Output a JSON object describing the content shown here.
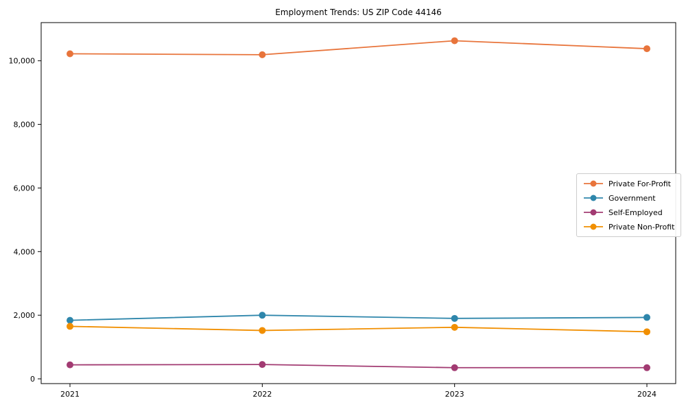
{
  "chart_data": {
    "type": "line",
    "title": "Employment Trends: US ZIP Code 44146",
    "x": [
      "2021",
      "2022",
      "2023",
      "2024"
    ],
    "series": [
      {
        "name": "Private For-Profit",
        "color": "#E8743B",
        "values": [
          10220,
          10190,
          10630,
          10380
        ]
      },
      {
        "name": "Government",
        "color": "#2E86AB",
        "values": [
          1840,
          2000,
          1900,
          1930
        ]
      },
      {
        "name": "Self-Employed",
        "color": "#A23B72",
        "values": [
          440,
          450,
          350,
          350
        ]
      },
      {
        "name": "Private Non-Profit",
        "color": "#F18F01",
        "values": [
          1650,
          1520,
          1620,
          1480
        ]
      }
    ],
    "xlabel": "",
    "ylabel": "",
    "ylim": [
      -150,
      11200
    ],
    "yticks": [
      0,
      2000,
      4000,
      6000,
      8000,
      10000
    ],
    "ytick_labels": [
      "0",
      "2,000",
      "4,000",
      "6,000",
      "8,000",
      "10,000"
    ],
    "grid": false,
    "legend_position": "center right",
    "frame": true
  }
}
